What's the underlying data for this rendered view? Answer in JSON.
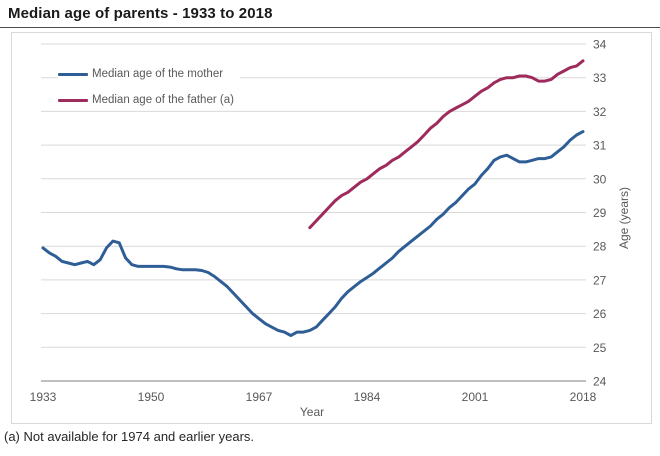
{
  "header": {
    "title": "Median age of parents - 1933 to 2018"
  },
  "chart_data": {
    "type": "line",
    "title": "Median age of parents - 1933 to 2018",
    "xlabel": "Year",
    "ylabel": "Age (years)",
    "xlim": [
      1933,
      2018
    ],
    "ylim": [
      24,
      34
    ],
    "x_ticks": [
      1933,
      1950,
      1967,
      1984,
      2001,
      2018
    ],
    "y_ticks": [
      24,
      25,
      26,
      27,
      28,
      29,
      30,
      31,
      32,
      33,
      34
    ],
    "grid": "horizontal",
    "y_axis_side": "right",
    "legend_position": "top-left-inside",
    "grid_color": "#d9d9d9",
    "axis_color": "#999999",
    "tick_label_color": "#595959",
    "series": [
      {
        "name": "Median age of the mother",
        "color": "#2E5E95",
        "start_year": 1933,
        "values": [
          27.95,
          27.8,
          27.7,
          27.55,
          27.5,
          27.45,
          27.5,
          27.55,
          27.45,
          27.6,
          27.95,
          28.15,
          28.1,
          27.65,
          27.45,
          27.4,
          27.4,
          27.4,
          27.4,
          27.4,
          27.38,
          27.33,
          27.3,
          27.3,
          27.3,
          27.28,
          27.22,
          27.1,
          26.95,
          26.8,
          26.6,
          26.4,
          26.2,
          26.0,
          25.85,
          25.7,
          25.6,
          25.5,
          25.45,
          25.35,
          25.45,
          25.45,
          25.5,
          25.6,
          25.8,
          26.0,
          26.2,
          26.45,
          26.65,
          26.8,
          26.95,
          27.07,
          27.2,
          27.35,
          27.5,
          27.65,
          27.85,
          28.0,
          28.15,
          28.3,
          28.45,
          28.6,
          28.8,
          28.95,
          29.15,
          29.3,
          29.5,
          29.7,
          29.85,
          30.1,
          30.3,
          30.55,
          30.65,
          30.7,
          30.6,
          30.5,
          30.5,
          30.55,
          30.6,
          30.6,
          30.65,
          30.8,
          30.95,
          31.15,
          31.3,
          31.4
        ]
      },
      {
        "name": "Median age of the father (a)",
        "color": "#9E2B5C",
        "start_year": 1975,
        "values": [
          28.55,
          28.75,
          28.95,
          29.15,
          29.35,
          29.5,
          29.6,
          29.75,
          29.9,
          30.0,
          30.15,
          30.3,
          30.4,
          30.55,
          30.65,
          30.8,
          30.95,
          31.1,
          31.3,
          31.5,
          31.65,
          31.85,
          32.0,
          32.1,
          32.2,
          32.3,
          32.45,
          32.6,
          32.7,
          32.85,
          32.95,
          33.0,
          33.0,
          33.05,
          33.05,
          33.0,
          32.9,
          32.9,
          32.95,
          33.1,
          33.2,
          33.3,
          33.35,
          33.5
        ]
      }
    ]
  },
  "footnote": {
    "text": "(a) Not available for 1974 and earlier years."
  }
}
